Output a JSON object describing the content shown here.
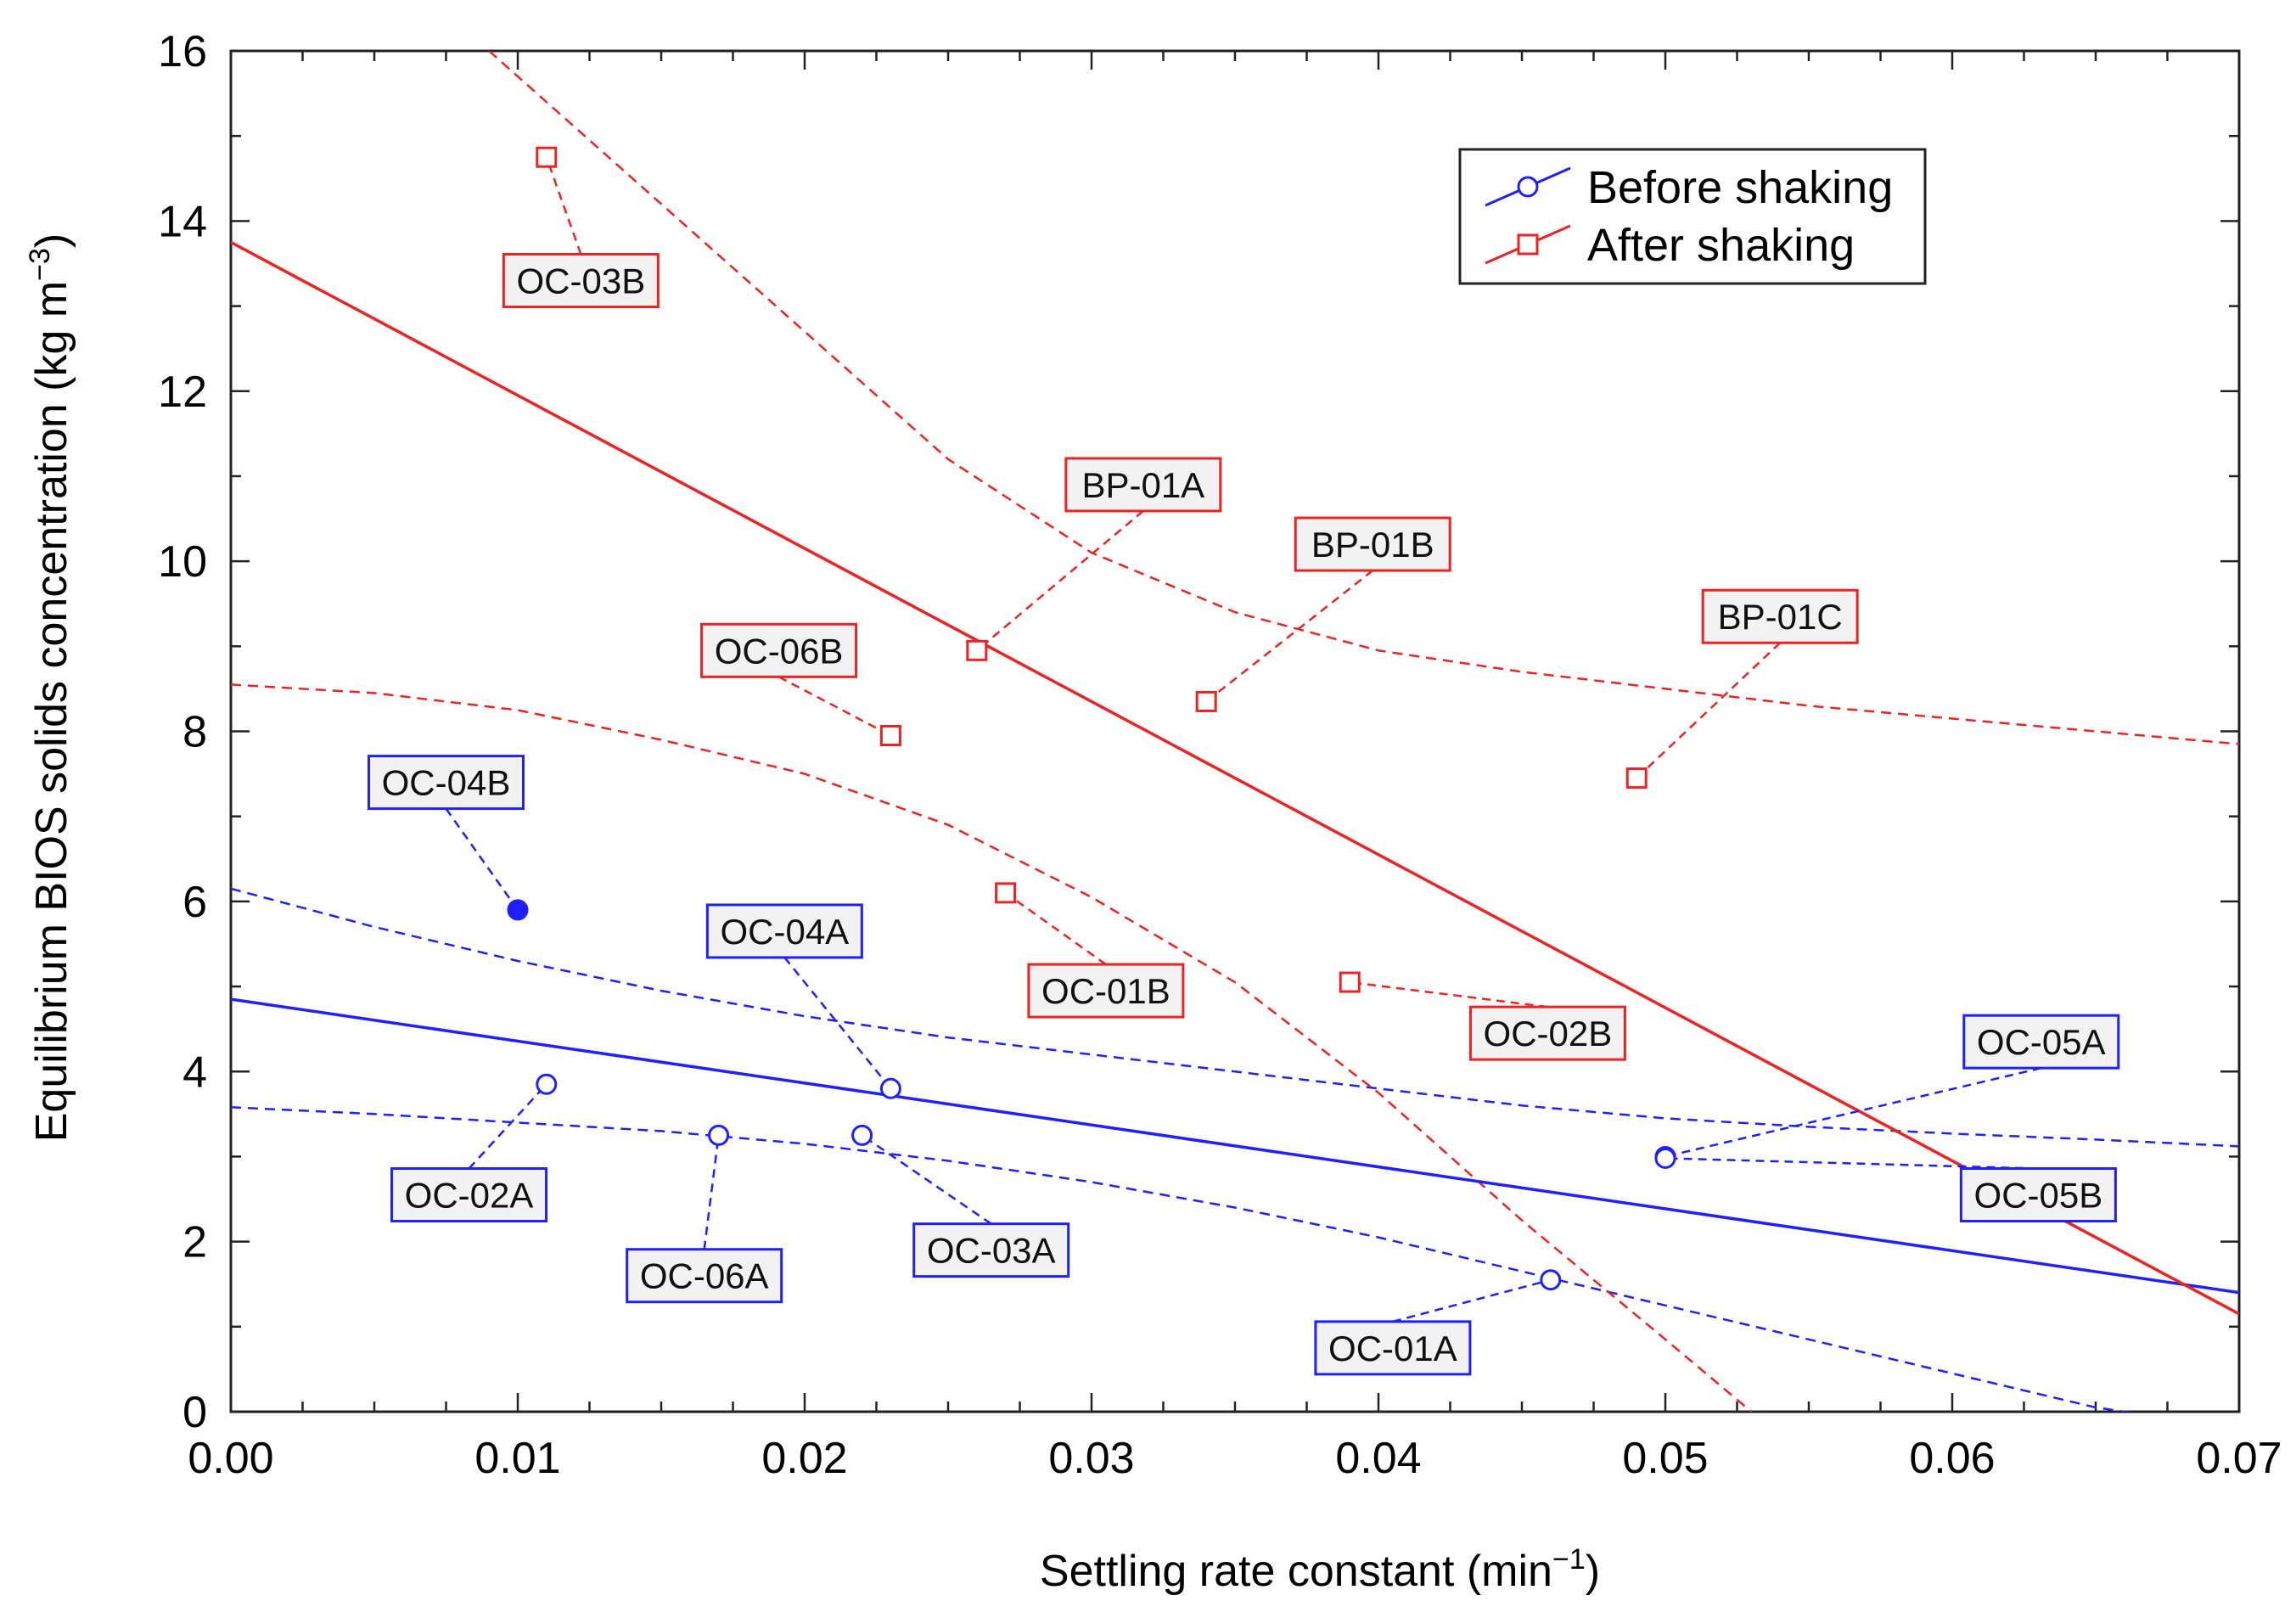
{
  "chart_data": {
    "type": "scatter",
    "title": "",
    "xlabel_main": "Settling rate constant (min",
    "xlabel_sup": "−1",
    "xlabel_end": ")",
    "ylabel_main": "Equilibrium BIOS solids concentration (kg m",
    "ylabel_sup": "−3",
    "ylabel_end": ")",
    "xlim": [
      0,
      0.07
    ],
    "ylim": [
      0,
      16
    ],
    "xticks": [
      0,
      0.01,
      0.02,
      0.03,
      0.04,
      0.05,
      0.06,
      0.07
    ],
    "xtick_labels": [
      "0.00",
      "0.01",
      "0.02",
      "0.03",
      "0.04",
      "0.05",
      "0.06",
      "0.07"
    ],
    "yticks": [
      0,
      2,
      4,
      6,
      8,
      10,
      12,
      14,
      16
    ],
    "ytick_labels": [
      "0",
      "2",
      "4",
      "6",
      "8",
      "10",
      "12",
      "14",
      "16"
    ],
    "legend": {
      "position": "top-right",
      "entries": [
        "Before shaking",
        "After shaking"
      ]
    },
    "series": [
      {
        "name": "Before shaking",
        "color": "#1f1fff",
        "marker": "circle",
        "points": [
          {
            "label": "OC-01A",
            "x": 0.046,
            "y": 1.55,
            "filled": false,
            "label_x": 0.0405,
            "label_y": 0.75
          },
          {
            "label": "OC-02A",
            "x": 0.011,
            "y": 3.85,
            "filled": false,
            "label_x": 0.0083,
            "label_y": 2.55
          },
          {
            "label": "OC-03A",
            "x": 0.022,
            "y": 3.25,
            "filled": false,
            "label_x": 0.0265,
            "label_y": 1.9
          },
          {
            "label": "OC-04A",
            "x": 0.023,
            "y": 3.8,
            "filled": false,
            "label_x": 0.0193,
            "label_y": 5.65
          },
          {
            "label": "OC-04B",
            "x": 0.01,
            "y": 5.9,
            "filled": true,
            "label_x": 0.0075,
            "label_y": 7.4
          },
          {
            "label": "OC-05A",
            "x": 0.05,
            "y": 3.0,
            "filled": false,
            "label_x": 0.0631,
            "label_y": 4.35
          },
          {
            "label": "OC-05B",
            "x": 0.05,
            "y": 2.98,
            "filled": false,
            "label_x": 0.063,
            "label_y": 2.55
          },
          {
            "label": "OC-06A",
            "x": 0.017,
            "y": 3.25,
            "filled": false,
            "label_x": 0.0165,
            "label_y": 1.6
          }
        ],
        "fit": {
          "x": [
            0,
            0.07
          ],
          "y": [
            4.85,
            1.4
          ]
        },
        "ci_upper": {
          "x": [
            0,
            0.005,
            0.01,
            0.015,
            0.02,
            0.025,
            0.03,
            0.035,
            0.04,
            0.045,
            0.05,
            0.055,
            0.06,
            0.065,
            0.07
          ],
          "y": [
            6.15,
            5.7,
            5.3,
            4.95,
            4.65,
            4.4,
            4.2,
            4.0,
            3.8,
            3.6,
            3.45,
            3.35,
            3.27,
            3.2,
            3.12
          ]
        },
        "ci_lower": {
          "x": [
            0,
            0.005,
            0.01,
            0.015,
            0.02,
            0.025,
            0.03,
            0.035,
            0.04,
            0.045,
            0.05,
            0.055,
            0.06,
            0.065,
            0.067
          ],
          "y": [
            3.58,
            3.5,
            3.4,
            3.3,
            3.15,
            2.95,
            2.7,
            2.4,
            2.05,
            1.65,
            1.25,
            0.85,
            0.45,
            0.05,
            -0.05
          ]
        }
      },
      {
        "name": "After shaking",
        "color": "#ee2222",
        "marker": "square",
        "points": [
          {
            "label": "BP-01A",
            "x": 0.026,
            "y": 8.95,
            "filled": false,
            "label_x": 0.0318,
            "label_y": 10.9
          },
          {
            "label": "BP-01B",
            "x": 0.034,
            "y": 8.35,
            "filled": false,
            "label_x": 0.0398,
            "label_y": 10.2
          },
          {
            "label": "BP-01C",
            "x": 0.049,
            "y": 7.45,
            "filled": false,
            "label_x": 0.054,
            "label_y": 9.35
          },
          {
            "label": "OC-01B",
            "x": 0.027,
            "y": 6.1,
            "filled": false,
            "label_x": 0.0305,
            "label_y": 4.95
          },
          {
            "label": "OC-02B",
            "x": 0.039,
            "y": 5.05,
            "filled": false,
            "label_x": 0.0459,
            "label_y": 4.45
          },
          {
            "label": "OC-03B",
            "x": 0.011,
            "y": 14.75,
            "filled": false,
            "label_x": 0.0122,
            "label_y": 13.3
          },
          {
            "label": "OC-06B",
            "x": 0.023,
            "y": 7.95,
            "filled": false,
            "label_x": 0.0191,
            "label_y": 8.95
          }
        ],
        "fit": {
          "x": [
            0,
            0.07
          ],
          "y": [
            13.75,
            1.15
          ]
        },
        "ci_upper": {
          "x": [
            0.009,
            0.015,
            0.02,
            0.025,
            0.03,
            0.035,
            0.04,
            0.045,
            0.05,
            0.055,
            0.06,
            0.065,
            0.07
          ],
          "y": [
            16.0,
            14.2,
            12.7,
            11.2,
            10.1,
            9.4,
            8.95,
            8.7,
            8.5,
            8.3,
            8.15,
            8.0,
            7.85
          ]
        },
        "ci_lower": {
          "x": [
            0,
            0.005,
            0.01,
            0.015,
            0.02,
            0.025,
            0.03,
            0.035,
            0.04,
            0.045,
            0.05,
            0.053
          ],
          "y": [
            8.55,
            8.45,
            8.25,
            7.9,
            7.5,
            6.9,
            6.05,
            5.05,
            3.75,
            2.25,
            0.85,
            0.0
          ]
        }
      }
    ]
  }
}
